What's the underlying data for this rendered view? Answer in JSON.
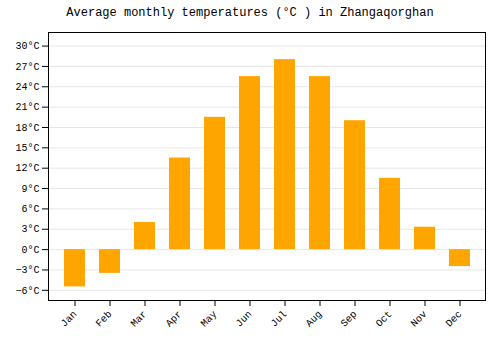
{
  "chart_data": {
    "type": "bar",
    "title": "Average monthly temperatures (°C ) in Zhangaqorghan",
    "categories": [
      "Jan",
      "Feb",
      "Mar",
      "Apr",
      "May",
      "Jun",
      "Jul",
      "Aug",
      "Sep",
      "Oct",
      "Nov",
      "Dec"
    ],
    "values": [
      -5.5,
      -3.5,
      4.0,
      13.5,
      19.5,
      25.5,
      28.0,
      25.5,
      19.0,
      10.5,
      3.3,
      -2.5
    ],
    "color": "#FFA500",
    "ylim": [
      -7.5,
      32
    ],
    "yticks": [
      {
        "value": -6,
        "label": "−6°C"
      },
      {
        "value": -3,
        "label": "−3°C"
      },
      {
        "value": 0,
        "label": "0°C"
      },
      {
        "value": 3,
        "label": "3°C"
      },
      {
        "value": 6,
        "label": "6°C"
      },
      {
        "value": 9,
        "label": "9°C"
      },
      {
        "value": 12,
        "label": "12°C"
      },
      {
        "value": 15,
        "label": "15°C"
      },
      {
        "value": 18,
        "label": "18°C"
      },
      {
        "value": 21,
        "label": "21°C"
      },
      {
        "value": 24,
        "label": "24°C"
      },
      {
        "value": 27,
        "label": "27°C"
      },
      {
        "value": 30,
        "label": "30°C"
      }
    ],
    "grid": true
  }
}
